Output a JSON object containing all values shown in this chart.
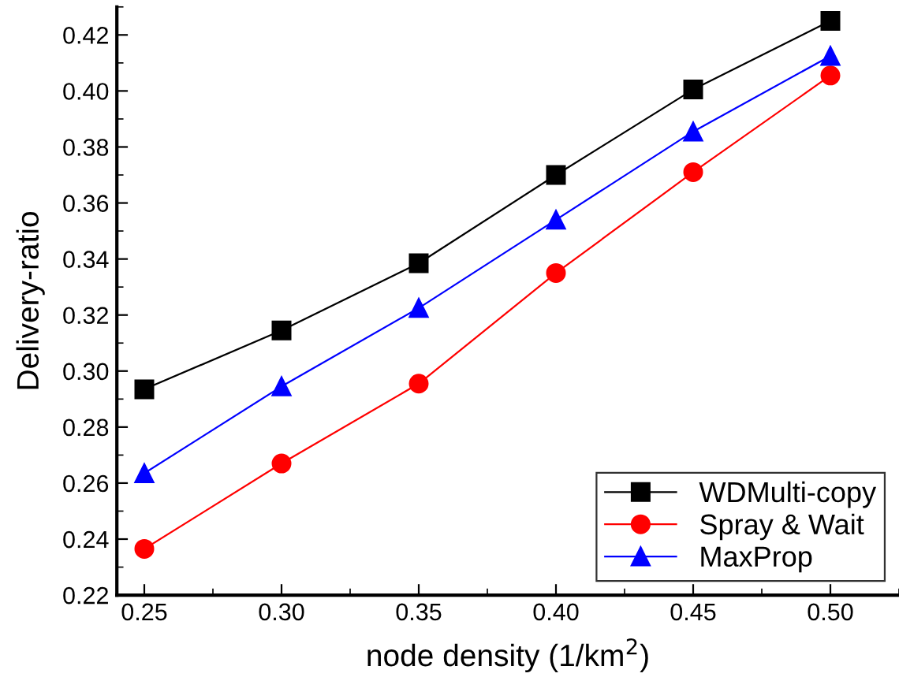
{
  "chart_data": {
    "type": "line",
    "xlabel": "node density (1/km$^{2}$)",
    "ylabel": "Delivery-ratio",
    "x": [
      0.25,
      0.3,
      0.35,
      0.4,
      0.45,
      0.5
    ],
    "series": [
      {
        "name": "WDMulti-copy",
        "color": "#000000",
        "marker": "square",
        "values": [
          0.2935,
          0.3145,
          0.3385,
          0.37,
          0.4005,
          0.425
        ]
      },
      {
        "name": "Spray & Wait",
        "color": "#ff0000",
        "marker": "circle",
        "values": [
          0.2365,
          0.267,
          0.2955,
          0.335,
          0.371,
          0.4055
        ]
      },
      {
        "name": "MaxProp",
        "color": "#0000ff",
        "marker": "triangle",
        "values": [
          0.2635,
          0.2945,
          0.3225,
          0.354,
          0.3855,
          0.4125
        ]
      }
    ],
    "xlim": [
      0.24,
      0.525
    ],
    "xticks": [
      {
        "value": 0.25,
        "label": "0.25"
      },
      {
        "value": 0.3,
        "label": "0.30"
      },
      {
        "value": 0.35,
        "label": "0.35"
      },
      {
        "value": 0.4,
        "label": "0.40"
      },
      {
        "value": 0.45,
        "label": "0.45"
      },
      {
        "value": 0.5,
        "label": "0.50"
      }
    ],
    "ylim": [
      0.22,
      0.43
    ],
    "yticks": [
      {
        "value": 0.22,
        "label": "0.22"
      },
      {
        "value": 0.24,
        "label": "0.24"
      },
      {
        "value": 0.26,
        "label": "0.26"
      },
      {
        "value": 0.28,
        "label": "0.28"
      },
      {
        "value": 0.3,
        "label": "0.30"
      },
      {
        "value": 0.32,
        "label": "0.32"
      },
      {
        "value": 0.34,
        "label": "0.34"
      },
      {
        "value": 0.36,
        "label": "0.36"
      },
      {
        "value": 0.38,
        "label": "0.38"
      },
      {
        "value": 0.4,
        "label": "0.40"
      },
      {
        "value": 0.42,
        "label": "0.42"
      }
    ],
    "grid": false,
    "legend": "bottom right",
    "line_style": "solid"
  }
}
